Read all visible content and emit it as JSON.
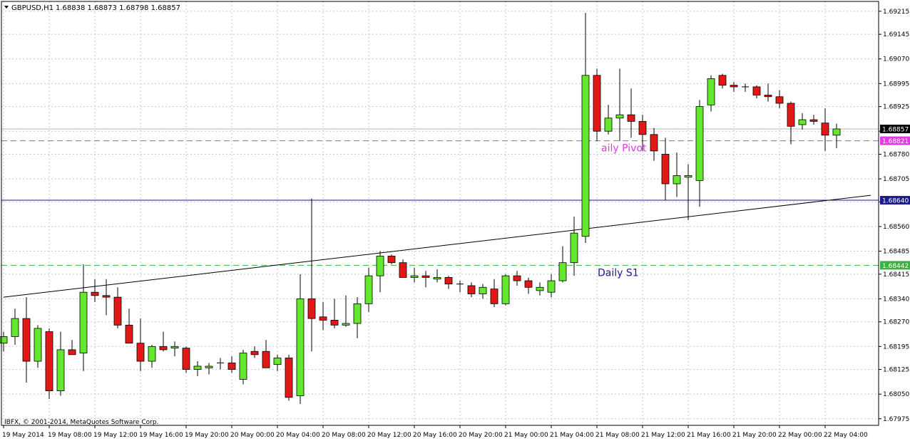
{
  "header": {
    "symbol_label": "GBPUSD,H1",
    "ohlc_label": "1.68838 1.68873 1.68798 1.68857"
  },
  "copyright": "IBFX, © 2001-2014, MetaQuotes Software Corp.",
  "colors": {
    "bull": "#66e62e",
    "bear": "#e01818",
    "wick": "#000000",
    "grid": "#c8c8c8",
    "pivot": "#e03ce0",
    "s1": "#3cb043",
    "resistance": "#1a1a8c",
    "price_marker": "#000000"
  },
  "chart_data": {
    "type": "candlestick",
    "symbol": "GBPUSD",
    "timeframe": "H1",
    "ylim": [
      1.67955,
      1.69245
    ],
    "y_ticks": [
      "1.69215",
      "1.69145",
      "1.69070",
      "1.68995",
      "1.68925",
      "1.68850",
      "1.68780",
      "1.68705",
      "1.68635",
      "1.68560",
      "1.68485",
      "1.68415",
      "1.68340",
      "1.68270",
      "1.68195",
      "1.68125",
      "1.68050",
      "1.67975"
    ],
    "x_labels": [
      "19 May 2014",
      "19 May 08:00",
      "19 May 12:00",
      "19 May 16:00",
      "19 May 20:00",
      "20 May 00:00",
      "20 May 04:00",
      "20 May 08:00",
      "20 May 12:00",
      "20 May 16:00",
      "20 May 20:00",
      "21 May 00:00",
      "21 May 04:00",
      "21 May 08:00",
      "21 May 12:00",
      "21 May 16:00",
      "21 May 20:00",
      "22 May 00:00",
      "22 May 04:00"
    ],
    "candles": [
      [
        1.68205,
        1.6824,
        1.6818,
        1.68225
      ],
      [
        1.68225,
        1.6831,
        1.682,
        1.6828
      ],
      [
        1.6828,
        1.68345,
        1.68085,
        1.6815
      ],
      [
        1.6815,
        1.6826,
        1.6813,
        1.6825
      ],
      [
        1.6824,
        1.6825,
        1.68035,
        1.6806
      ],
      [
        1.6806,
        1.6824,
        1.68045,
        1.68185
      ],
      [
        1.68185,
        1.68215,
        1.6817,
        1.6817
      ],
      [
        1.68175,
        1.68445,
        1.6812,
        1.6836
      ],
      [
        1.6836,
        1.684,
        1.6833,
        1.6835
      ],
      [
        1.6835,
        1.684,
        1.6829,
        1.68345
      ],
      [
        1.68345,
        1.68375,
        1.6825,
        1.6826
      ],
      [
        1.6826,
        1.6831,
        1.68205,
        1.68205
      ],
      [
        1.68205,
        1.6828,
        1.6812,
        1.6815
      ],
      [
        1.6815,
        1.682,
        1.6813,
        1.68195
      ],
      [
        1.68195,
        1.6824,
        1.6818,
        1.68185
      ],
      [
        1.6819,
        1.6821,
        1.68165,
        1.68195
      ],
      [
        1.6819,
        1.68195,
        1.68115,
        1.68125
      ],
      [
        1.68125,
        1.6815,
        1.68105,
        1.68135
      ],
      [
        1.6813,
        1.68145,
        1.6811,
        1.68135
      ],
      [
        1.68145,
        1.6816,
        1.68125,
        1.68145
      ],
      [
        1.68145,
        1.68165,
        1.68115,
        1.68125
      ],
      [
        1.68095,
        1.68185,
        1.6808,
        1.68175
      ],
      [
        1.6818,
        1.68195,
        1.6816,
        1.6817
      ],
      [
        1.6818,
        1.68215,
        1.6813,
        1.6813
      ],
      [
        1.6814,
        1.6817,
        1.6812,
        1.6816
      ],
      [
        1.6816,
        1.6817,
        1.6803,
        1.6804
      ],
      [
        1.68045,
        1.68415,
        1.6802,
        1.6834
      ],
      [
        1.6834,
        1.68645,
        1.6818,
        1.6828
      ],
      [
        1.68285,
        1.6833,
        1.68245,
        1.68275
      ],
      [
        1.68275,
        1.6834,
        1.6825,
        1.6826
      ],
      [
        1.6826,
        1.6835,
        1.68255,
        1.68265
      ],
      [
        1.68265,
        1.68345,
        1.6822,
        1.68325
      ],
      [
        1.68325,
        1.68435,
        1.683,
        1.6841
      ],
      [
        1.6841,
        1.68485,
        1.6836,
        1.6847
      ],
      [
        1.6847,
        1.68475,
        1.68445,
        1.6845
      ],
      [
        1.6845,
        1.6846,
        1.6841,
        1.68405
      ],
      [
        1.68405,
        1.68435,
        1.6839,
        1.6841
      ],
      [
        1.6841,
        1.68425,
        1.68375,
        1.68405
      ],
      [
        1.684,
        1.6843,
        1.6839,
        1.68405
      ],
      [
        1.68405,
        1.6841,
        1.6837,
        1.68385
      ],
      [
        1.68385,
        1.68395,
        1.6836,
        1.68385
      ],
      [
        1.6838,
        1.6839,
        1.68345,
        1.68355
      ],
      [
        1.68355,
        1.68385,
        1.6834,
        1.68375
      ],
      [
        1.6837,
        1.684,
        1.68315,
        1.68325
      ],
      [
        1.68325,
        1.68415,
        1.6832,
        1.6841
      ],
      [
        1.6841,
        1.68425,
        1.6838,
        1.68395
      ],
      [
        1.68395,
        1.68405,
        1.68355,
        1.68375
      ],
      [
        1.68365,
        1.6839,
        1.6835,
        1.68375
      ],
      [
        1.6836,
        1.68415,
        1.68345,
        1.68395
      ],
      [
        1.68395,
        1.685,
        1.6839,
        1.6845
      ],
      [
        1.6845,
        1.6859,
        1.6841,
        1.6854
      ],
      [
        1.6853,
        1.6921,
        1.6851,
        1.6902
      ],
      [
        1.6902,
        1.6904,
        1.6882,
        1.6885
      ],
      [
        1.6885,
        1.6893,
        1.6884,
        1.6889
      ],
      [
        1.6889,
        1.6904,
        1.6882,
        1.689
      ],
      [
        1.689,
        1.6898,
        1.6883,
        1.6888
      ],
      [
        1.6888,
        1.689,
        1.6879,
        1.6884
      ],
      [
        1.6884,
        1.6886,
        1.6876,
        1.6879
      ],
      [
        1.6878,
        1.6883,
        1.6864,
        1.6869
      ],
      [
        1.6869,
        1.68785,
        1.6865,
        1.68715
      ],
      [
        1.6871,
        1.6875,
        1.6858,
        1.68715
      ],
      [
        1.687,
        1.68945,
        1.6862,
        1.68925
      ],
      [
        1.6893,
        1.6902,
        1.6891,
        1.6901
      ],
      [
        1.6902,
        1.69025,
        1.6898,
        1.6899
      ],
      [
        1.6899,
        1.69,
        1.6897,
        1.68985
      ],
      [
        1.68985,
        1.68995,
        1.6897,
        1.68985
      ],
      [
        1.68985,
        1.6899,
        1.6895,
        1.6896
      ],
      [
        1.6896,
        1.68995,
        1.6894,
        1.68955
      ],
      [
        1.68955,
        1.68975,
        1.6892,
        1.68935
      ],
      [
        1.68935,
        1.6894,
        1.6881,
        1.68865
      ],
      [
        1.6887,
        1.68905,
        1.68855,
        1.68885
      ],
      [
        1.68885,
        1.689,
        1.6887,
        1.6888
      ],
      [
        1.68875,
        1.6892,
        1.6879,
        1.68838
      ],
      [
        1.68838,
        1.68873,
        1.68798,
        1.68857
      ]
    ],
    "levels": [
      {
        "name": "Daily Pivot",
        "value": 1.68821,
        "label": "1.68821",
        "style": "dashed",
        "color_key": "pivot"
      },
      {
        "name": "Daily S1",
        "value": 1.68442,
        "label": "1.68442",
        "style": "dashed",
        "color_key": "s1"
      },
      {
        "name": "",
        "value": 1.6864,
        "label": "1.68640",
        "style": "solid",
        "color_key": "resistance"
      }
    ],
    "current_price": {
      "value": 1.68857,
      "label": "1.68857"
    },
    "annotations": [
      {
        "text": "aily Pivot",
        "level": 1.68821,
        "color_key": "pivot"
      },
      {
        "text": "Daily S1",
        "level": 1.68442,
        "color_key": "resistance"
      }
    ],
    "trendline": {
      "points": [
        [
          0,
          1.68345
        ],
        [
          76,
          1.68655
        ]
      ]
    }
  }
}
